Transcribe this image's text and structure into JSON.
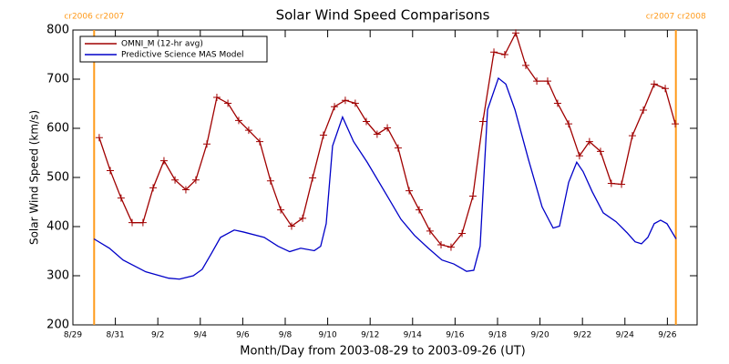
{
  "chart_data": {
    "type": "line",
    "title": "Solar Wind Speed Comparisons",
    "xlabel": "Month/Day from 2003-08-29 to 2003-09-26 (UT)",
    "ylabel": "Solar Wind Speed (km/s)",
    "xlim": [
      0,
      29.4
    ],
    "ylim": [
      200,
      800
    ],
    "xticks": [
      {
        "value": 0,
        "label": "8/29"
      },
      {
        "value": 2,
        "label": "8/31"
      },
      {
        "value": 4,
        "label": "9/2"
      },
      {
        "value": 6,
        "label": "9/4"
      },
      {
        "value": 8,
        "label": "9/6"
      },
      {
        "value": 10,
        "label": "9/8"
      },
      {
        "value": 12,
        "label": "9/10"
      },
      {
        "value": 14,
        "label": "9/12"
      },
      {
        "value": 16,
        "label": "9/14"
      },
      {
        "value": 18,
        "label": "9/16"
      },
      {
        "value": 20,
        "label": "9/18"
      },
      {
        "value": 22,
        "label": "9/20"
      },
      {
        "value": 24,
        "label": "9/22"
      },
      {
        "value": 26,
        "label": "9/24"
      },
      {
        "value": 28,
        "label": "9/26"
      }
    ],
    "yticks": [
      200,
      300,
      400,
      500,
      600,
      700,
      800
    ],
    "legend": "upper left",
    "markers": [
      {
        "x": 1.0,
        "label": "cr2006 cr2007",
        "color": "#ff9a1a"
      },
      {
        "x": 28.4,
        "label": "cr2007 cr2008",
        "color": "#ff9a1a"
      }
    ],
    "series": [
      {
        "name": "OMNI_M (12-hr avg)",
        "color": "#a00000",
        "marker": "+",
        "x": [
          1.24,
          1.76,
          2.27,
          2.79,
          3.3,
          3.78,
          4.29,
          4.81,
          5.32,
          5.79,
          6.31,
          6.78,
          7.3,
          7.81,
          8.28,
          8.8,
          9.31,
          9.79,
          10.3,
          10.82,
          11.29,
          11.8,
          12.32,
          12.83,
          13.3,
          13.82,
          14.33,
          14.81,
          15.32,
          15.84,
          16.31,
          16.82,
          17.34,
          17.81,
          18.33,
          18.84,
          19.31,
          19.83,
          20.34,
          20.86,
          21.33,
          21.85,
          22.36,
          22.83,
          23.35,
          23.86,
          24.33,
          24.85,
          25.36,
          25.84,
          26.35,
          26.87,
          27.38,
          27.9,
          28.37
        ],
        "values": [
          581,
          514,
          458,
          408,
          408,
          479,
          534,
          495,
          475,
          495,
          568,
          663,
          651,
          616,
          596,
          573,
          493,
          434,
          401,
          417,
          499,
          586,
          644,
          657,
          651,
          614,
          588,
          601,
          560,
          473,
          434,
          391,
          363,
          358,
          386,
          462,
          614,
          755,
          750,
          794,
          728,
          696,
          696,
          651,
          609,
          544,
          573,
          553,
          488,
          486,
          585,
          637,
          690,
          681,
          609
        ]
      },
      {
        "name": "Predictive Science MAS Model",
        "color": "#0000c8",
        "x": [
          0.99,
          1.72,
          2.36,
          3.43,
          4.51,
          5.02,
          5.67,
          6.09,
          6.52,
          6.95,
          7.6,
          8.03,
          9.01,
          9.66,
          10.21,
          10.73,
          11.37,
          11.67,
          11.93,
          12.23,
          12.7,
          13.22,
          13.86,
          14.81,
          15.45,
          16.09,
          16.74,
          17.38,
          17.94,
          18.54,
          18.88,
          19.18,
          19.53,
          20.04,
          20.39,
          20.82,
          21.46,
          22.1,
          22.62,
          22.92,
          23.35,
          23.73,
          24.03,
          24.46,
          24.98,
          25.58,
          26.09,
          26.48,
          26.78,
          27.08,
          27.38,
          27.68,
          27.98,
          28.41
        ],
        "values": [
          375,
          356,
          332,
          308,
          295,
          293,
          300,
          313,
          345,
          378,
          393,
          389,
          378,
          360,
          349,
          356,
          351,
          360,
          406,
          564,
          623,
          573,
          531,
          462,
          415,
          382,
          356,
          332,
          324,
          309,
          311,
          360,
          638,
          702,
          690,
          638,
          536,
          440,
          397,
          401,
          490,
          531,
          512,
          471,
          428,
          410,
          388,
          369,
          365,
          378,
          406,
          413,
          406,
          375
        ]
      }
    ]
  }
}
